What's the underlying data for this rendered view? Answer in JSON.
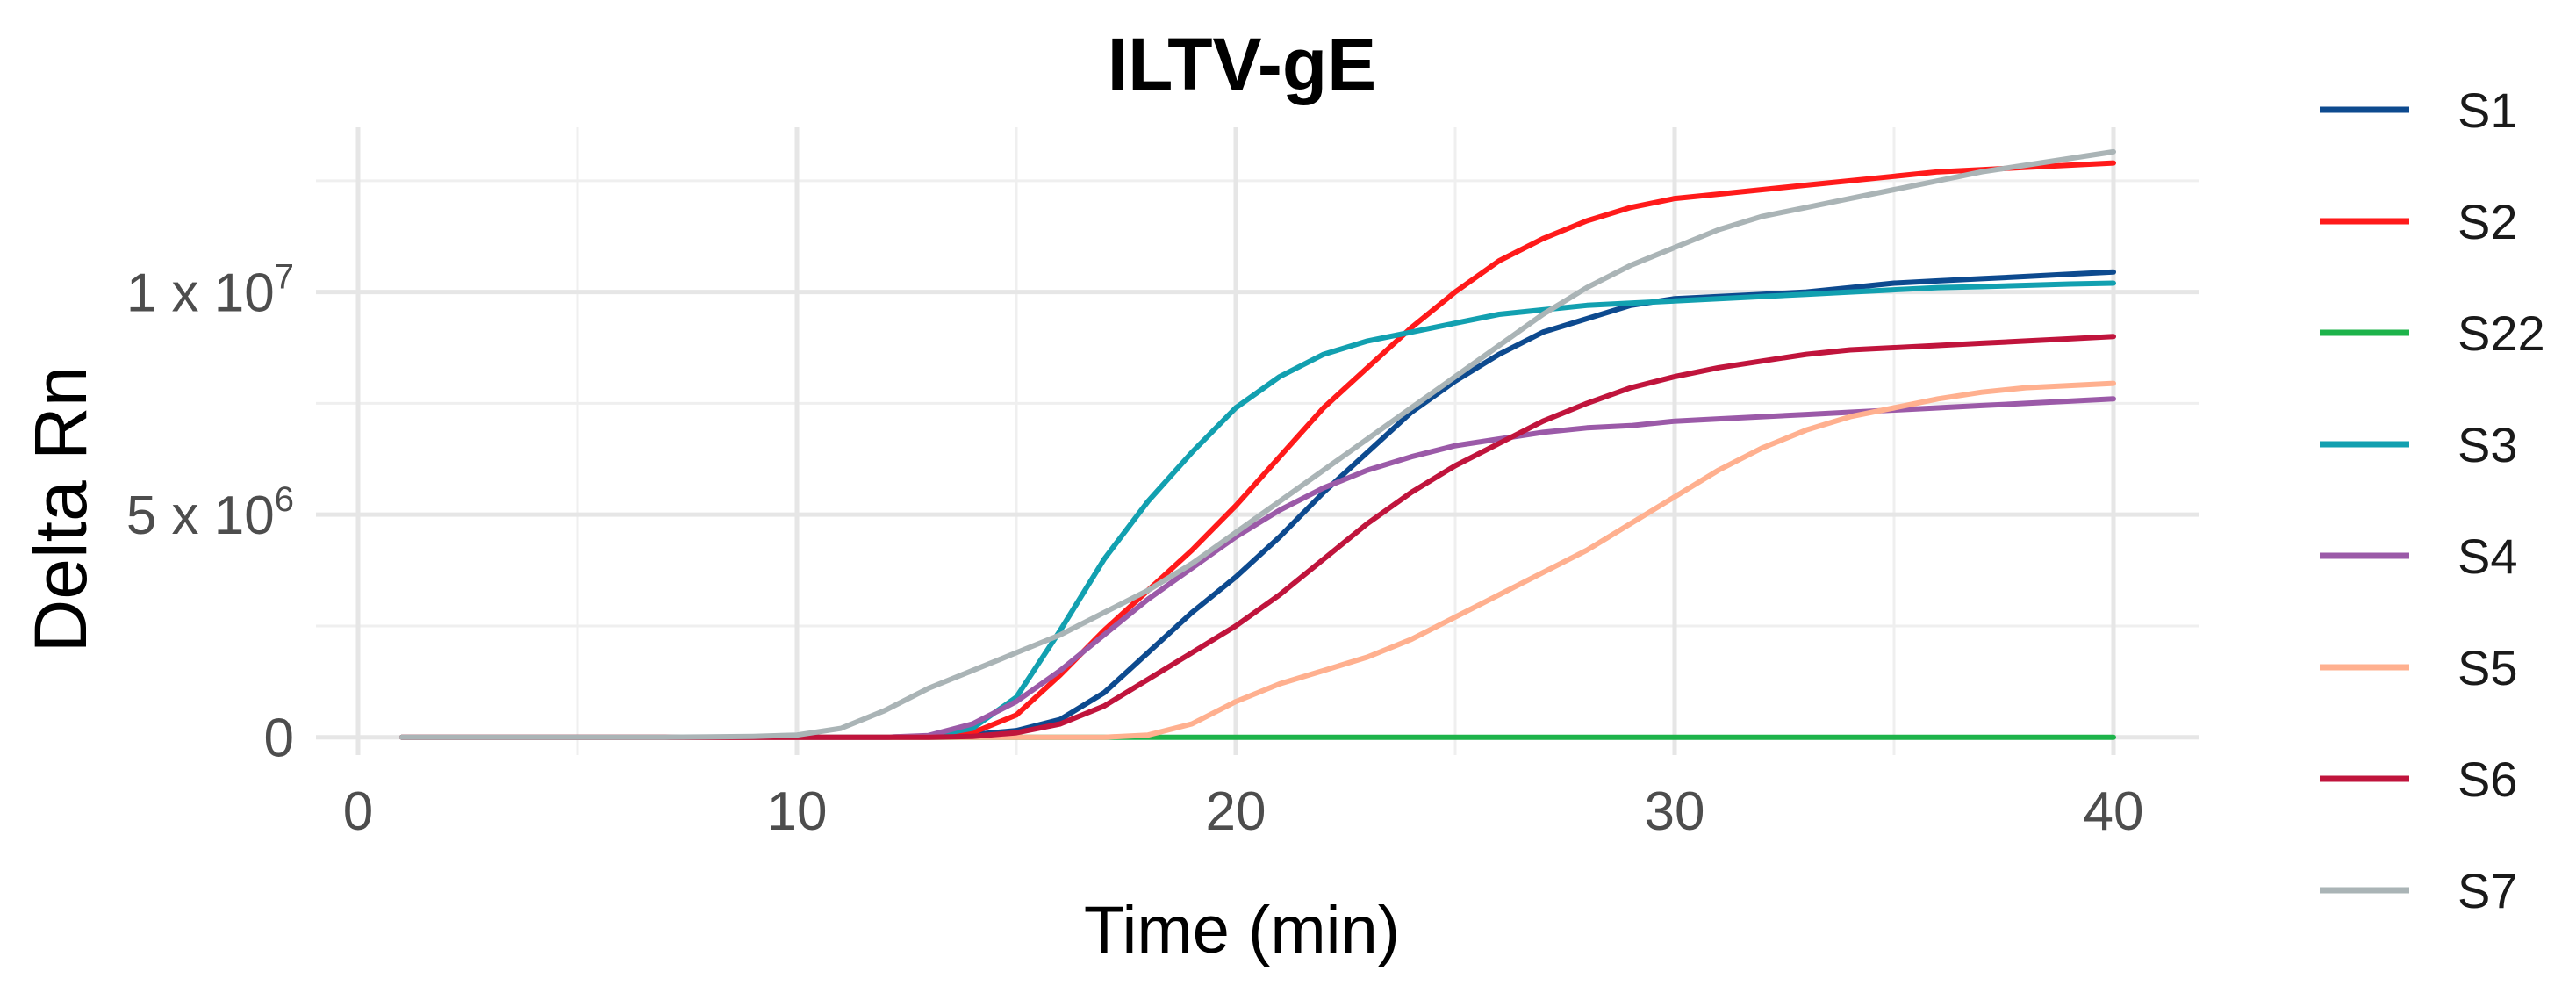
{
  "chart_data": {
    "type": "line",
    "title": "ILTV-gE",
    "xlabel": "Time (min)",
    "ylabel": "Delta Rn",
    "xlim": [
      0,
      40
    ],
    "ylim": [
      -400000,
      13700000
    ],
    "x_ticks": [
      {
        "value": 0,
        "label": "0"
      },
      {
        "value": 10,
        "label": "10"
      },
      {
        "value": 20,
        "label": "20"
      },
      {
        "value": 30,
        "label": "30"
      },
      {
        "value": 40,
        "label": "40"
      }
    ],
    "y_ticks": [
      {
        "value": 0,
        "label": "0",
        "exp": ""
      },
      {
        "value": 5000000,
        "label": "5 x 10",
        "exp": "6"
      },
      {
        "value": 10000000,
        "label": "1 x 10",
        "exp": "7"
      }
    ],
    "grid": true,
    "legend_position": "right",
    "x": [
      1,
      2,
      3,
      4,
      5,
      6,
      7,
      8,
      9,
      10,
      11,
      12,
      13,
      14,
      15,
      16,
      17,
      18,
      19,
      20,
      21,
      22,
      23,
      24,
      25,
      26,
      27,
      28,
      29,
      30,
      31,
      32,
      33,
      34,
      35,
      36,
      37,
      38,
      39,
      40
    ],
    "series": [
      {
        "name": "S1",
        "color": "#0d4a8f",
        "values": [
          0,
          0,
          0,
          0,
          0,
          0,
          0,
          0,
          0,
          0,
          0,
          0,
          20000,
          60000,
          150000,
          400000,
          1000000,
          1900000,
          2800000,
          3600000,
          4500000,
          5500000,
          6400000,
          7300000,
          8000000,
          8600000,
          9100000,
          9400000,
          9700000,
          9850000,
          9900000,
          9950000,
          10000000,
          10100000,
          10200000,
          10250000,
          10300000,
          10350000,
          10400000,
          10450000
        ]
      },
      {
        "name": "S2",
        "color": "#ff1a1a",
        "values": [
          0,
          0,
          0,
          0,
          0,
          0,
          0,
          0,
          0,
          0,
          0,
          0,
          20000,
          100000,
          500000,
          1400000,
          2400000,
          3300000,
          4200000,
          5200000,
          6300000,
          7400000,
          8300000,
          9200000,
          10000000,
          10700000,
          11200000,
          11600000,
          11900000,
          12100000,
          12200000,
          12300000,
          12400000,
          12500000,
          12600000,
          12700000,
          12750000,
          12800000,
          12850000,
          12900000
        ]
      },
      {
        "name": "S22",
        "color": "#1db34a",
        "values": [
          0,
          0,
          0,
          0,
          0,
          0,
          0,
          0,
          0,
          0,
          0,
          0,
          0,
          0,
          0,
          0,
          0,
          0,
          0,
          0,
          0,
          0,
          0,
          0,
          0,
          0,
          0,
          0,
          0,
          0,
          0,
          0,
          0,
          0,
          0,
          0,
          0,
          0,
          0,
          0
        ]
      },
      {
        "name": "S3",
        "color": "#12a0b0",
        "values": [
          0,
          0,
          0,
          0,
          0,
          0,
          0,
          0,
          0,
          0,
          0,
          0,
          20000,
          200000,
          900000,
          2400000,
          4000000,
          5300000,
          6400000,
          7400000,
          8100000,
          8600000,
          8900000,
          9100000,
          9300000,
          9500000,
          9600000,
          9700000,
          9750000,
          9800000,
          9850000,
          9900000,
          9950000,
          10000000,
          10050000,
          10100000,
          10120000,
          10150000,
          10180000,
          10200000
        ]
      },
      {
        "name": "S4",
        "color": "#9b5aa8",
        "values": [
          0,
          0,
          0,
          0,
          0,
          0,
          0,
          0,
          0,
          0,
          0,
          0,
          40000,
          300000,
          800000,
          1500000,
          2300000,
          3100000,
          3800000,
          4500000,
          5100000,
          5600000,
          6000000,
          6300000,
          6550000,
          6700000,
          6850000,
          6950000,
          7000000,
          7100000,
          7150000,
          7200000,
          7250000,
          7300000,
          7350000,
          7400000,
          7450000,
          7500000,
          7550000,
          7600000
        ]
      },
      {
        "name": "S5",
        "color": "#ffb08f",
        "values": [
          0,
          0,
          0,
          0,
          0,
          0,
          0,
          0,
          0,
          0,
          0,
          0,
          0,
          0,
          0,
          0,
          0,
          50000,
          300000,
          800000,
          1200000,
          1500000,
          1800000,
          2200000,
          2700000,
          3200000,
          3700000,
          4200000,
          4800000,
          5400000,
          6000000,
          6500000,
          6900000,
          7200000,
          7400000,
          7600000,
          7750000,
          7850000,
          7900000,
          7950000
        ]
      },
      {
        "name": "S6",
        "color": "#c0143c",
        "values": [
          0,
          0,
          0,
          0,
          0,
          0,
          0,
          0,
          0,
          0,
          0,
          0,
          0,
          20000,
          100000,
          300000,
          700000,
          1300000,
          1900000,
          2500000,
          3200000,
          4000000,
          4800000,
          5500000,
          6100000,
          6600000,
          7100000,
          7500000,
          7850000,
          8100000,
          8300000,
          8450000,
          8600000,
          8700000,
          8750000,
          8800000,
          8850000,
          8900000,
          8950000,
          9000000
        ]
      },
      {
        "name": "S7",
        "color": "#aab4b6",
        "values": [
          0,
          0,
          0,
          0,
          0,
          0,
          0,
          10000,
          20000,
          50000,
          200000,
          600000,
          1100000,
          1500000,
          1900000,
          2300000,
          2800000,
          3300000,
          3900000,
          4600000,
          5300000,
          6000000,
          6700000,
          7400000,
          8100000,
          8800000,
          9500000,
          10100000,
          10600000,
          11000000,
          11400000,
          11700000,
          11900000,
          12100000,
          12300000,
          12500000,
          12700000,
          12850000,
          13000000,
          13150000
        ]
      }
    ]
  }
}
